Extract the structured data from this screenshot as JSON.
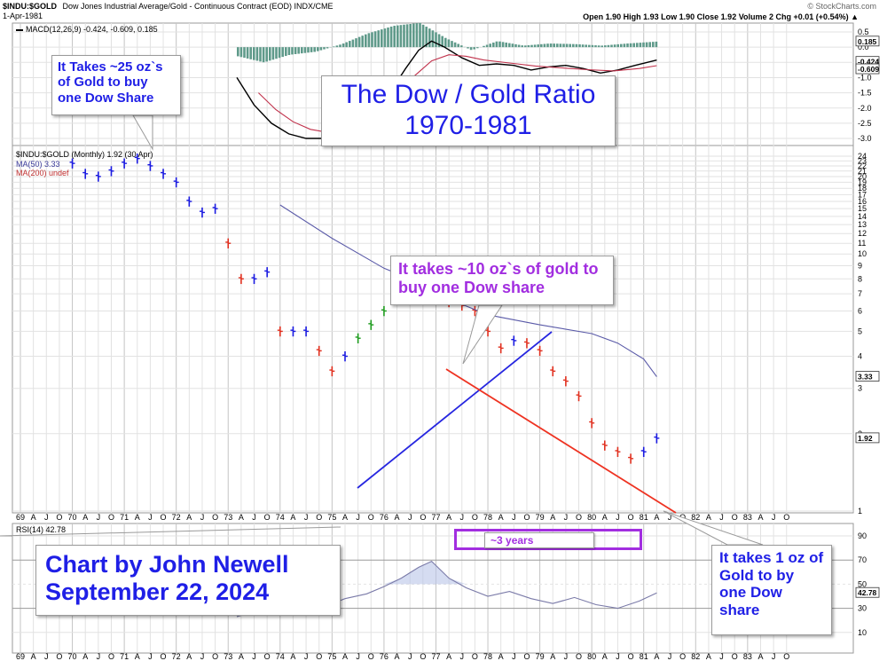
{
  "header": {
    "symbol": "$INDU:$GOLD",
    "description": "Dow Jones Industrial Average/Gold - Continuous Contract (EOD) INDX/CME",
    "copyright": "© StockCharts.com",
    "date": "1-Apr-1981",
    "quote": "Open 1.90  High 1.93  Low 1.90  Close 1.92  Volume 2  Chg +0.01 (+0.54%) ▲"
  },
  "macd_panel": {
    "label": "MACD(12,26,9) -0.424, -0.609, 0.185",
    "ticks": [
      "0.5",
      "0.0",
      "-0.5",
      "-1.0",
      "-1.5",
      "-2.0",
      "-2.5",
      "-3.0"
    ],
    "tick_values": [
      0.5,
      0.0,
      -0.5,
      -1.0,
      -1.5,
      -2.0,
      -2.5,
      -3.0
    ],
    "ylim": [
      -3.2,
      0.7
    ],
    "badges": [
      "0.185",
      "-0.424",
      "-0.609"
    ],
    "badge_values": [
      0.185,
      -0.424,
      -0.609
    ]
  },
  "price_panel": {
    "label": "$INDU:$GOLD (Monthly) 1.92 (30 Apr)",
    "ma50_label": "MA(50) 3.33",
    "ma200_label": "MA(200) undef",
    "ticks": [
      "24",
      "23",
      "22",
      "21",
      "20",
      "19",
      "18",
      "17",
      "16",
      "15",
      "14",
      "13",
      "12",
      "11",
      "10",
      "9",
      "8",
      "7",
      "6",
      "5",
      "4",
      "3",
      "2",
      "1"
    ],
    "tick_values": [
      24,
      23,
      22,
      21,
      20,
      19,
      18,
      17,
      16,
      15,
      14,
      13,
      12,
      11,
      10,
      9,
      8,
      7,
      6,
      5,
      4,
      3,
      2,
      1
    ],
    "badges": [
      "3.33",
      "1.92"
    ],
    "badge_values": [
      3.33,
      1.92
    ]
  },
  "rsi_panel": {
    "label": "RSI(14) 42.78",
    "ticks": [
      "90",
      "70",
      "50",
      "30",
      "10"
    ],
    "tick_values": [
      90,
      70,
      50,
      30,
      10
    ],
    "badges": [
      "42.78"
    ],
    "badge_values": [
      42.78
    ]
  },
  "x_axis": {
    "labels": [
      "69",
      "A",
      "J",
      "O",
      "70",
      "A",
      "J",
      "O",
      "71",
      "A",
      "J",
      "O",
      "72",
      "A",
      "J",
      "O",
      "73",
      "A",
      "J",
      "O",
      "74",
      "A",
      "J",
      "O",
      "75",
      "A",
      "J",
      "O",
      "76",
      "A",
      "J",
      "O",
      "77",
      "A",
      "J",
      "O",
      "78",
      "A",
      "J",
      "O",
      "79",
      "A",
      "J",
      "O",
      "80",
      "A",
      "J",
      "O",
      "81",
      "A",
      "J",
      "O",
      "82",
      "A",
      "J",
      "O",
      "83",
      "A",
      "J",
      "O"
    ]
  },
  "annotations": {
    "title_line1": "The Dow / Gold Ratio",
    "title_line2": "1970-1981",
    "note_25": "It Takes ~25 oz`s of Gold to buy one Dow Share",
    "note_10": "It takes ~10 oz`s of gold to buy one Dow share",
    "note_1": "It takes 1 oz of Gold to by one Dow share",
    "three_years": "~3 years",
    "credit_line1": "Chart by John Newell",
    "credit_line2": "September 22, 2024"
  },
  "colors": {
    "up": "#1f9c1f",
    "down": "#e0301f",
    "neutral": "#1a1ae0",
    "ma50": "#5a5aa8",
    "trend_up": "#2626e0",
    "trend_down": "#ee3322",
    "macd_line": "#000000",
    "signal_line": "#c0304a",
    "histogram": "#5f9a8a",
    "rsi_line": "#7a7aa8",
    "rsi_fill": "#6f9f90",
    "callout_text": "#1f1fe6",
    "callout_purple": "#a22ee0",
    "box_purple": "#a22ee0"
  },
  "chart_data": [
    {
      "type": "line",
      "title": "$INDU:$GOLD (Monthly)",
      "x_range": [
        "1969-01",
        "1983-12"
      ],
      "y_scale": "log",
      "ylim": [
        1,
        24
      ],
      "series": [
        {
          "name": "$INDU:$GOLD",
          "style": "ohlc-bars",
          "x": [
            "1970-01",
            "1970-04",
            "1970-07",
            "1970-10",
            "1971-01",
            "1971-04",
            "1971-07",
            "1971-10",
            "1972-01",
            "1972-04",
            "1972-07",
            "1972-10",
            "1973-01",
            "1973-04",
            "1973-07",
            "1973-10",
            "1974-01",
            "1974-04",
            "1974-07",
            "1974-10",
            "1975-01",
            "1975-04",
            "1975-07",
            "1975-10",
            "1976-01",
            "1976-04",
            "1976-07",
            "1976-10",
            "1977-01",
            "1977-04",
            "1977-07",
            "1977-10",
            "1978-01",
            "1978-04",
            "1978-07",
            "1978-10",
            "1979-01",
            "1979-04",
            "1979-07",
            "1979-10",
            "1980-01",
            "1980-04",
            "1980-07",
            "1980-10",
            "1981-01",
            "1981-04"
          ],
          "values": [
            22.5,
            20.5,
            20.0,
            21.0,
            22.5,
            23.5,
            22.0,
            20.5,
            19.0,
            16.0,
            14.5,
            15.0,
            11.0,
            8.0,
            8.0,
            8.5,
            5.0,
            5.0,
            5.0,
            4.2,
            3.5,
            4.0,
            4.7,
            5.3,
            6.0,
            7.0,
            7.5,
            8.8,
            7.5,
            6.5,
            6.3,
            6.0,
            5.0,
            4.3,
            4.6,
            4.5,
            4.2,
            3.5,
            3.2,
            2.8,
            2.2,
            1.8,
            1.7,
            1.6,
            1.7,
            1.92
          ]
        },
        {
          "name": "MA(50)",
          "x": [
            "1974-01",
            "1975-01",
            "1976-01",
            "1976-07",
            "1977-01",
            "1978-01",
            "1979-01",
            "1980-01",
            "1980-07",
            "1981-01",
            "1981-04"
          ],
          "values": [
            15.5,
            11.5,
            8.8,
            8.0,
            7.0,
            5.8,
            5.3,
            4.9,
            4.5,
            3.9,
            3.33
          ]
        }
      ]
    },
    {
      "type": "bar",
      "title": "MACD(12,26,9)",
      "x_range": [
        "1969-01",
        "1983-12"
      ],
      "ylim": [
        -3.2,
        0.7
      ],
      "series": [
        {
          "name": "MACD",
          "style": "line",
          "x": [
            "1973-03",
            "1973-07",
            "1973-11",
            "1974-03",
            "1974-07",
            "1974-11",
            "1975-03",
            "1975-07",
            "1975-11",
            "1976-03",
            "1976-06",
            "1976-09",
            "1976-12",
            "1977-03",
            "1977-07",
            "1977-11",
            "1978-03",
            "1978-07",
            "1978-11",
            "1979-03",
            "1979-07",
            "1979-11",
            "1980-03",
            "1980-07",
            "1980-11",
            "1981-04"
          ],
          "values": [
            -1.0,
            -1.9,
            -2.5,
            -2.85,
            -3.0,
            -3.0,
            -2.85,
            -2.55,
            -2.0,
            -1.35,
            -0.7,
            -0.1,
            0.2,
            0.0,
            -0.35,
            -0.6,
            -0.55,
            -0.6,
            -0.75,
            -0.65,
            -0.6,
            -0.7,
            -0.85,
            -0.75,
            -0.6,
            -0.424
          ]
        },
        {
          "name": "Signal",
          "style": "line",
          "x": [
            "1973-08",
            "1973-12",
            "1974-04",
            "1974-08",
            "1974-12",
            "1975-04",
            "1975-08",
            "1975-12",
            "1976-04",
            "1976-08",
            "1976-12",
            "1977-04",
            "1977-08",
            "1977-12",
            "1978-06",
            "1978-12",
            "1979-06",
            "1979-12",
            "1980-06",
            "1980-12",
            "1981-04"
          ],
          "values": [
            -1.5,
            -2.05,
            -2.45,
            -2.7,
            -2.8,
            -2.75,
            -2.55,
            -2.15,
            -1.55,
            -0.95,
            -0.45,
            -0.25,
            -0.3,
            -0.42,
            -0.52,
            -0.62,
            -0.68,
            -0.74,
            -0.78,
            -0.7,
            -0.609
          ]
        },
        {
          "name": "Histogram",
          "style": "bar",
          "x": [
            "1973-03",
            "1973-09",
            "1974-03",
            "1974-09",
            "1975-03",
            "1975-09",
            "1976-03",
            "1976-09",
            "1977-03",
            "1977-09",
            "1978-03",
            "1978-09",
            "1979-03",
            "1979-09",
            "1980-03",
            "1980-09",
            "1981-04"
          ],
          "values": [
            -0.3,
            -0.5,
            -0.25,
            -0.15,
            0.1,
            0.45,
            0.7,
            0.8,
            0.3,
            -0.1,
            0.2,
            0.05,
            0.12,
            0.1,
            0.05,
            0.12,
            0.185
          ]
        }
      ]
    },
    {
      "type": "line",
      "title": "RSI(14)",
      "x_range": [
        "1969-01",
        "1983-12"
      ],
      "ylim": [
        0,
        100
      ],
      "series": [
        {
          "name": "RSI",
          "x": [
            "1973-03",
            "1973-09",
            "1974-01",
            "1974-06",
            "1974-11",
            "1975-04",
            "1975-09",
            "1976-01",
            "1976-05",
            "1976-09",
            "1976-12",
            "1977-04",
            "1977-08",
            "1978-01",
            "1978-06",
            "1978-11",
            "1979-04",
            "1979-09",
            "1980-02",
            "1980-07",
            "1980-12",
            "1981-04"
          ],
          "values": [
            23,
            30,
            26,
            35,
            31,
            38,
            42,
            48,
            55,
            64,
            69,
            55,
            47,
            40,
            44,
            38,
            34,
            39,
            33,
            30,
            36,
            42.78
          ]
        }
      ]
    }
  ]
}
